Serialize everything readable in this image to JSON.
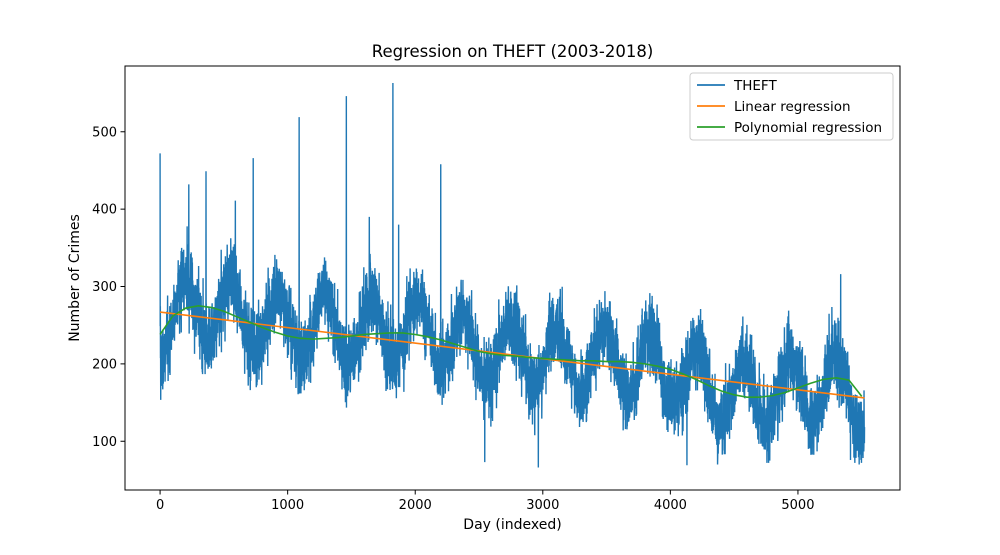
{
  "chart_data": {
    "type": "line",
    "title": "Regression on THEFT (2003-2018)",
    "xlabel": "Day (indexed)",
    "ylabel": "Number of Crimes",
    "xlim": [
      -275,
      5800
    ],
    "ylim": [
      37,
      585
    ],
    "xticks": [
      0,
      1000,
      2000,
      3000,
      4000,
      5000
    ],
    "yticks": [
      100,
      200,
      300,
      400,
      500
    ],
    "xtick_labels": [
      "0",
      "1000",
      "2000",
      "3000",
      "4000",
      "5000"
    ],
    "ytick_labels": [
      "100",
      "200",
      "300",
      "400",
      "500"
    ],
    "grid": false,
    "legend_position": "top-right",
    "legend": [
      "THEFT",
      "Linear regression",
      "Polynomial regression"
    ],
    "series": [
      {
        "name": "THEFT",
        "color": "#1f77b4",
        "num_points": 5523,
        "trend": [
          [
            0,
            255
          ],
          [
            250,
            275
          ],
          [
            500,
            265
          ],
          [
            750,
            255
          ],
          [
            1000,
            250
          ],
          [
            1250,
            245
          ],
          [
            1500,
            240
          ],
          [
            1750,
            245
          ],
          [
            2000,
            245
          ],
          [
            2250,
            235
          ],
          [
            2500,
            215
          ],
          [
            2750,
            215
          ],
          [
            3000,
            210
          ],
          [
            3250,
            205
          ],
          [
            3500,
            205
          ],
          [
            3750,
            200
          ],
          [
            4000,
            190
          ],
          [
            4250,
            175
          ],
          [
            4500,
            160
          ],
          [
            4750,
            160
          ],
          [
            5000,
            165
          ],
          [
            5250,
            175
          ],
          [
            5500,
            145
          ]
        ],
        "annual_amplitude": 40,
        "spikes": [
          [
            0,
            472
          ],
          [
            225,
            432
          ],
          [
            360,
            449
          ],
          [
            590,
            411
          ],
          [
            730,
            466
          ],
          [
            1090,
            519
          ],
          [
            1460,
            546
          ],
          [
            1640,
            390
          ],
          [
            1825,
            563
          ],
          [
            1870,
            380
          ],
          [
            2200,
            458
          ],
          [
            2545,
            73
          ],
          [
            2965,
            66
          ],
          [
            4130,
            69
          ],
          [
            4370,
            70
          ],
          [
            5335,
            316
          ],
          [
            5480,
            70
          ]
        ],
        "min": 62,
        "max": 563
      },
      {
        "name": "Linear regression",
        "color": "#ff7f0e",
        "x": [
          0,
          5522
        ],
        "y": [
          267,
          156
        ]
      },
      {
        "name": "Polynomial regression",
        "color": "#2ca02c",
        "x": [
          0,
          100,
          200,
          300,
          400,
          500,
          600,
          700,
          800,
          900,
          1000,
          1100,
          1200,
          1300,
          1400,
          1500,
          1600,
          1700,
          1800,
          1900,
          2000,
          2100,
          2200,
          2300,
          2400,
          2500,
          2600,
          2700,
          2800,
          2900,
          3000,
          3100,
          3200,
          3300,
          3400,
          3500,
          3600,
          3700,
          3800,
          3900,
          4000,
          4100,
          4200,
          4300,
          4400,
          4500,
          4600,
          4700,
          4800,
          4900,
          5000,
          5100,
          5200,
          5300,
          5400,
          5500
        ],
        "y": [
          238,
          262,
          272,
          275,
          273,
          268,
          261,
          254,
          247,
          241,
          236,
          233,
          232,
          233,
          234,
          236,
          238,
          239,
          240,
          240,
          238,
          235,
          231,
          226,
          221,
          216,
          213,
          211,
          210,
          208,
          207,
          206,
          205,
          204,
          204,
          203,
          203,
          202,
          200,
          197,
          193,
          187,
          180,
          172,
          165,
          160,
          157,
          157,
          159,
          163,
          169,
          175,
          180,
          182,
          179,
          158
        ]
      }
    ]
  }
}
